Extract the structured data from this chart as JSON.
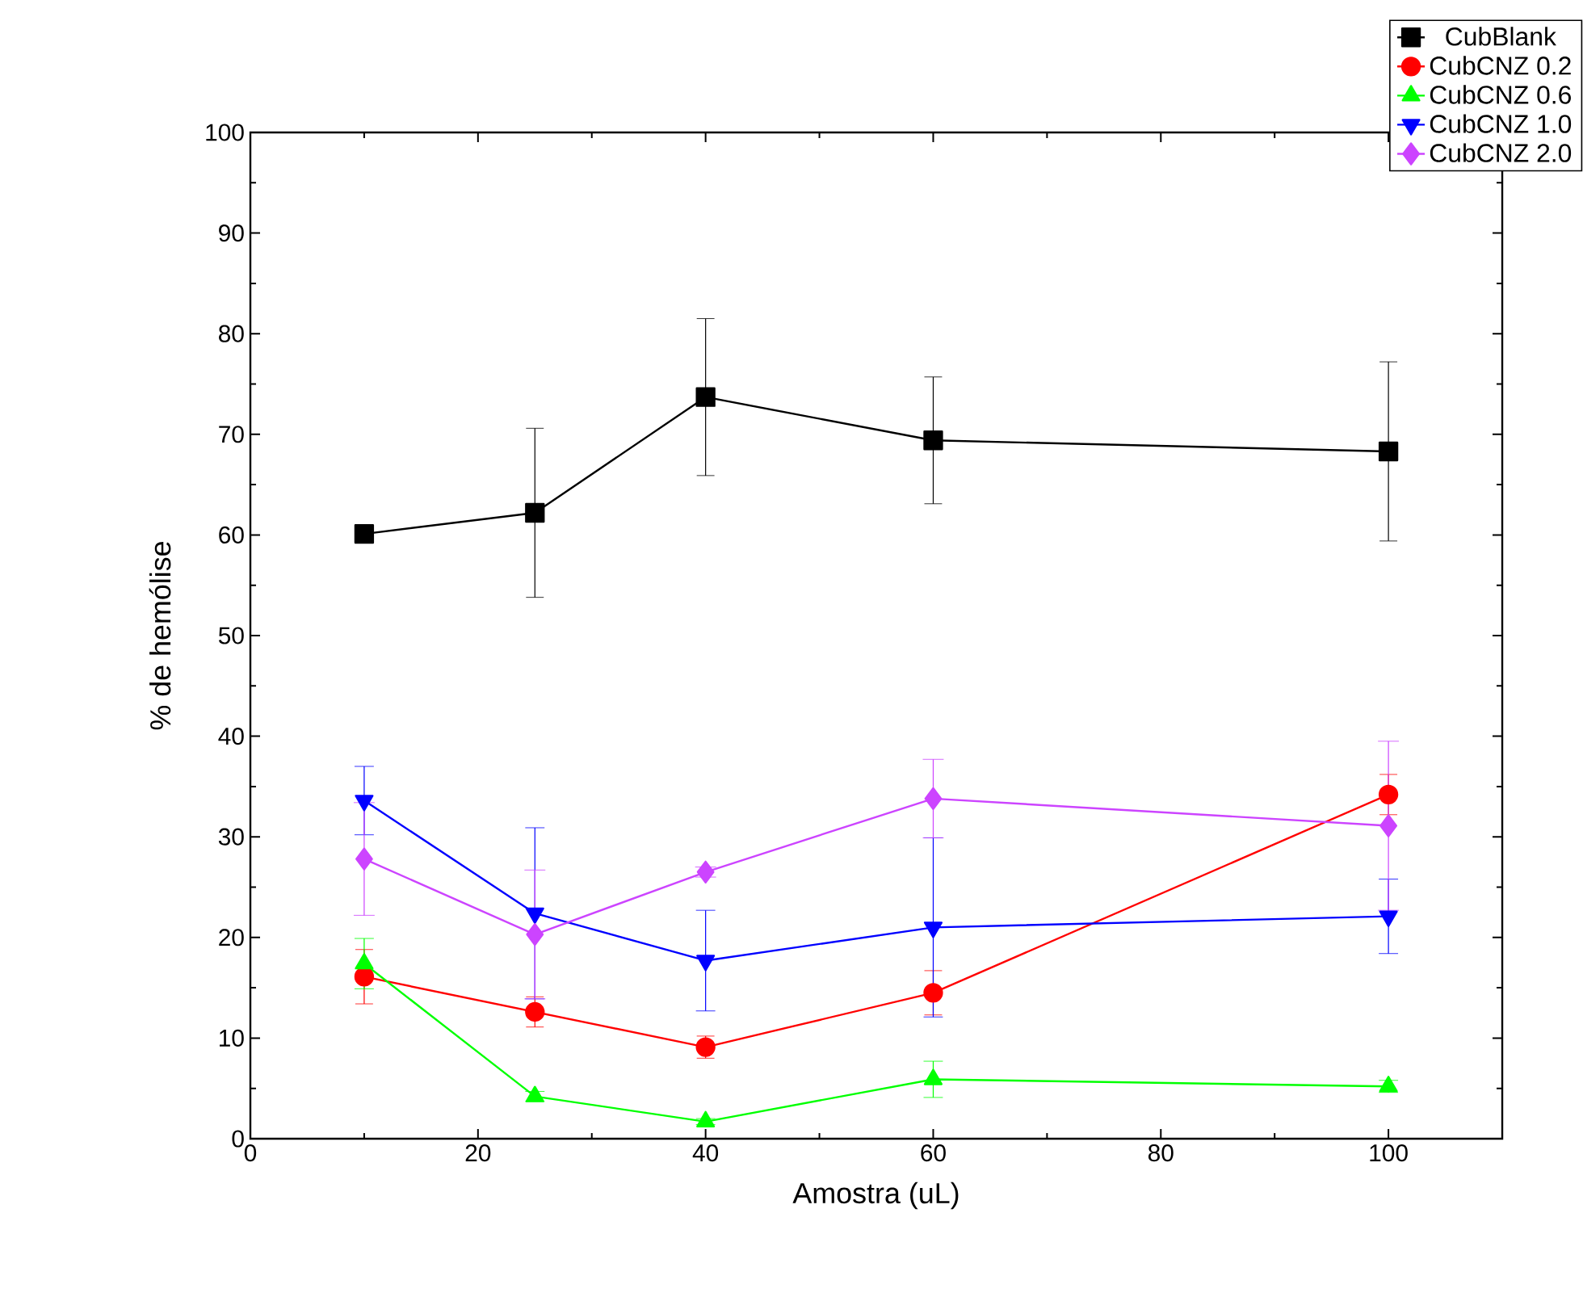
{
  "chart_data": {
    "type": "line",
    "xlabel": "Amostra (uL)",
    "ylabel": "% de hemólise",
    "x": [
      10,
      25,
      40,
      60,
      100
    ],
    "xlim": [
      0,
      110
    ],
    "xticks": [
      0,
      20,
      40,
      60,
      80,
      100
    ],
    "ylim": [
      0,
      100
    ],
    "yticks": [
      0,
      10,
      20,
      30,
      40,
      50,
      60,
      70,
      80,
      90,
      100
    ],
    "legend": "top right",
    "grid": false,
    "series": [
      {
        "name": "CubBlank",
        "color": "#000000",
        "marker": "square",
        "values": [
          60.1,
          62.2,
          73.7,
          69.4,
          68.3
        ],
        "errors": [
          null,
          8.4,
          7.8,
          6.3,
          8.9
        ]
      },
      {
        "name": "CubCNZ 0.2",
        "color": "#ff0000",
        "marker": "circle",
        "values": [
          16.1,
          12.6,
          9.1,
          14.5,
          34.2
        ],
        "errors": [
          2.7,
          1.5,
          1.1,
          2.2,
          2.0
        ]
      },
      {
        "name": "CubCNZ 0.6",
        "color": "#00ff00",
        "marker": "triangle",
        "values": [
          17.4,
          4.2,
          1.7,
          5.9,
          5.2
        ],
        "errors": [
          2.5,
          0.5,
          0.3,
          1.8,
          0.6
        ]
      },
      {
        "name": "CubCNZ 1.0",
        "color": "#0000ff",
        "marker": "triangle-down",
        "values": [
          33.6,
          22.4,
          17.7,
          21.0,
          22.1
        ],
        "errors": [
          3.4,
          8.5,
          5.0,
          8.9,
          3.7
        ]
      },
      {
        "name": "CubCNZ 2.0",
        "color": "#cc44ff",
        "marker": "diamond",
        "values": [
          27.8,
          20.3,
          26.5,
          33.8,
          31.1
        ],
        "errors": [
          5.6,
          6.4,
          0.5,
          3.9,
          8.4
        ]
      }
    ]
  }
}
